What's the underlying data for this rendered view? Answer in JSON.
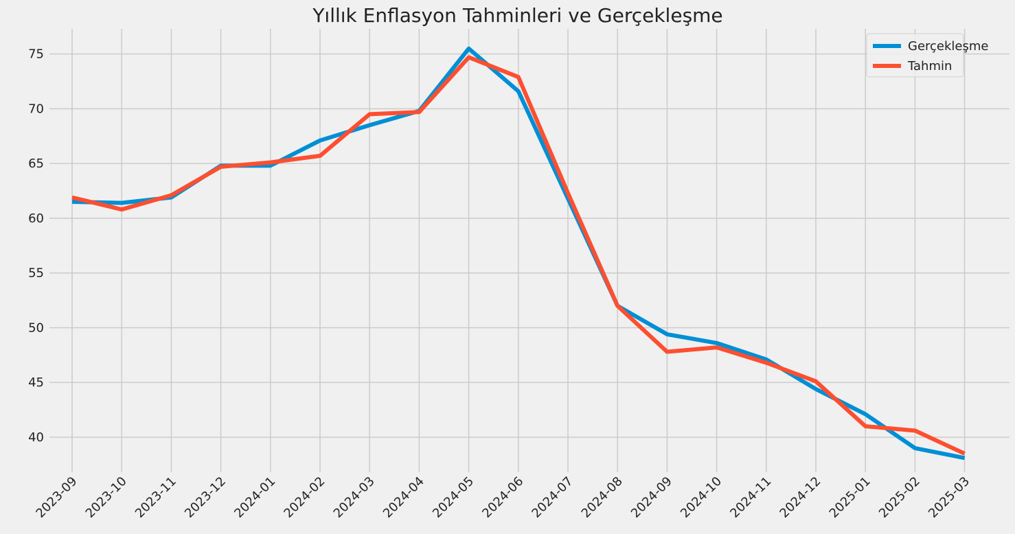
{
  "chart_data": {
    "type": "line",
    "title": "Yıllık Enflasyon Tahminleri ve Gerçekleşme",
    "xlabel": "",
    "ylabel": "",
    "categories": [
      "2023-09",
      "2023-10",
      "2023-11",
      "2023-12",
      "2024-01",
      "2024-02",
      "2024-03",
      "2024-04",
      "2024-05",
      "2024-06",
      "2024-07",
      "2024-08",
      "2024-09",
      "2024-10",
      "2024-11",
      "2024-12",
      "2025-01",
      "2025-02",
      "2025-03"
    ],
    "yticks": [
      40,
      45,
      50,
      55,
      60,
      65,
      70,
      75
    ],
    "ylim": [
      36.8,
      77.3
    ],
    "grid": true,
    "legend_position": "top-right",
    "series": [
      {
        "name": "Gerçekleşme",
        "color": "#008fd5",
        "values": [
          61.5,
          61.4,
          61.9,
          64.8,
          64.8,
          67.1,
          68.5,
          69.8,
          75.5,
          71.6,
          61.8,
          52.0,
          49.4,
          48.6,
          47.1,
          44.4,
          42.1,
          39.0,
          38.1
        ]
      },
      {
        "name": "Tahmin",
        "color": "#fc4f30",
        "values": [
          61.9,
          60.8,
          62.1,
          64.7,
          65.1,
          65.7,
          69.5,
          69.7,
          74.7,
          72.9,
          62.3,
          52.0,
          47.8,
          48.2,
          46.8,
          45.1,
          41.0,
          40.6,
          38.5
        ]
      }
    ]
  }
}
